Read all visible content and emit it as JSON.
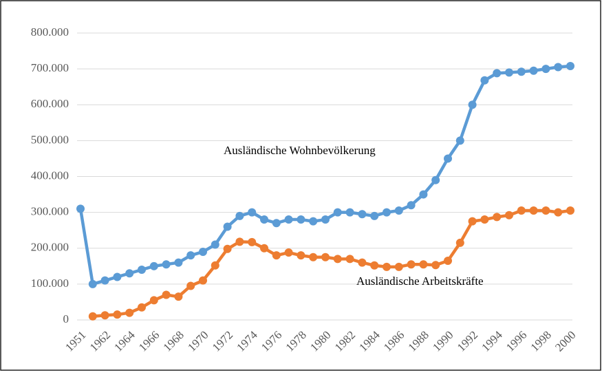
{
  "chart_data": {
    "type": "line",
    "categories": [
      "1951",
      null,
      "1962",
      null,
      "1964",
      null,
      "1966",
      null,
      "1968",
      null,
      "1970",
      null,
      "1972",
      null,
      "1974",
      null,
      "1976",
      null,
      "1978",
      null,
      "1980",
      null,
      "1982",
      null,
      "1984",
      null,
      "1986",
      null,
      "1988",
      null,
      "1990",
      null,
      "1992",
      null,
      "1994",
      null,
      "1996",
      null,
      "1998",
      null,
      "2000"
    ],
    "series": [
      {
        "name": "Ausländische Wohnbevölkerung",
        "color": "#5b9bd5",
        "values": [
          310000,
          100000,
          110000,
          120000,
          130000,
          140000,
          150000,
          155000,
          160000,
          180000,
          190000,
          210000,
          260000,
          290000,
          300000,
          280000,
          270000,
          280000,
          280000,
          275000,
          280000,
          300000,
          300000,
          295000,
          290000,
          300000,
          305000,
          320000,
          350000,
          390000,
          450000,
          500000,
          600000,
          668000,
          688000,
          690000,
          692000,
          695000,
          700000,
          705000,
          708000
        ]
      },
      {
        "name": "Ausländische Arbeitskräfte",
        "color": "#ed7d31",
        "values": [
          null,
          10000,
          13000,
          15000,
          20000,
          35000,
          55000,
          70000,
          65000,
          95000,
          110000,
          152000,
          198000,
          218000,
          217000,
          200000,
          180000,
          188000,
          180000,
          175000,
          175000,
          170000,
          170000,
          160000,
          152000,
          148000,
          148000,
          155000,
          155000,
          153000,
          165000,
          215000,
          275000,
          280000,
          287000,
          292000,
          305000,
          305000,
          305000,
          300000,
          305000
        ]
      }
    ],
    "ylim": [
      0,
      800000
    ],
    "yticks": [
      0,
      {
        "value": 100000,
        "label": "100.000"
      },
      {
        "value": 200000,
        "label": "200.000"
      },
      {
        "value": 300000,
        "label": "300.000"
      },
      {
        "value": 400000,
        "label": "400.000"
      },
      {
        "value": 500000,
        "label": "500.000"
      },
      {
        "value": 600000,
        "label": "600.000"
      },
      {
        "value": 700000,
        "label": "700.000"
      },
      {
        "value": 800000,
        "label": "800.000"
      }
    ],
    "grid": true
  }
}
